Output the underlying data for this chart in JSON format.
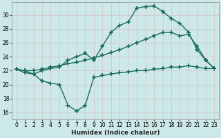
{
  "bg_color": "#cde8e8",
  "grid_color": "#b8d8d8",
  "line_color": "#1a6b60",
  "line_width": 1.0,
  "marker": "+",
  "marker_size": 4,
  "marker_ew": 1.2,
  "xlabel": "Humidex (Indice chaleur)",
  "xlabel_fontsize": 6.5,
  "tick_fontsize": 5.5,
  "xlim": [
    -0.5,
    23.5
  ],
  "ylim": [
    15.0,
    31.8
  ],
  "yticks": [
    16,
    18,
    20,
    22,
    24,
    26,
    28,
    30
  ],
  "xticks": [
    0,
    1,
    2,
    3,
    4,
    5,
    6,
    7,
    8,
    9,
    10,
    11,
    12,
    13,
    14,
    15,
    16,
    17,
    18,
    19,
    20,
    21,
    22,
    23
  ],
  "line1_x": [
    0,
    1,
    2,
    3,
    4,
    5,
    6,
    7,
    8,
    9,
    10,
    11,
    12,
    13,
    14,
    15,
    16,
    17,
    18,
    19,
    20,
    21,
    22,
    23
  ],
  "line1_y": [
    22.2,
    22.0,
    22.0,
    22.2,
    22.5,
    22.7,
    23.0,
    23.2,
    23.5,
    23.8,
    24.2,
    24.6,
    25.0,
    25.5,
    26.0,
    26.5,
    27.0,
    27.5,
    27.5,
    27.0,
    27.2,
    25.5,
    23.5,
    22.3
  ],
  "line2_x": [
    0,
    1,
    2,
    3,
    4,
    5,
    6,
    7,
    8,
    9,
    10,
    11,
    12,
    13,
    14,
    15,
    16,
    17,
    18,
    19,
    20,
    21,
    22,
    23
  ],
  "line2_y": [
    22.2,
    22.0,
    21.5,
    22.0,
    22.3,
    22.5,
    23.5,
    24.0,
    24.5,
    23.5,
    25.5,
    27.5,
    28.5,
    29.0,
    31.0,
    31.2,
    31.3,
    30.5,
    29.5,
    28.8,
    27.5,
    25.0,
    23.5,
    22.3
  ],
  "line3_x": [
    0,
    1,
    2,
    3,
    4,
    5,
    6,
    7,
    8,
    9,
    10,
    11,
    12,
    13,
    14,
    15,
    16,
    17,
    18,
    19,
    20,
    21,
    22,
    23
  ],
  "line3_y": [
    22.2,
    21.7,
    21.5,
    20.5,
    20.2,
    20.0,
    17.0,
    16.2,
    17.0,
    21.0,
    21.3,
    21.5,
    21.7,
    21.8,
    22.0,
    22.0,
    22.2,
    22.3,
    22.5,
    22.5,
    22.7,
    22.5,
    22.3,
    22.3
  ]
}
